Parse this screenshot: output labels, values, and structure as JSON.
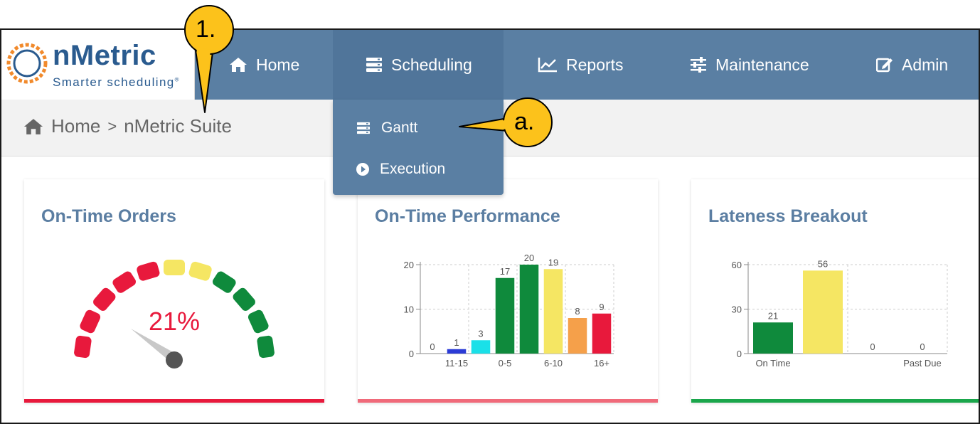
{
  "brand": {
    "name": "nMetric",
    "tagline": "Smarter scheduling",
    "trademark": "®",
    "color": "#2a5b8f",
    "ring_color": "#f18a2c"
  },
  "nav": {
    "items": [
      {
        "label": "Home",
        "icon": "home-icon"
      },
      {
        "label": "Scheduling",
        "icon": "server-stack-icon",
        "active": true
      },
      {
        "label": "Reports",
        "icon": "line-chart-icon"
      },
      {
        "label": "Maintenance",
        "icon": "sliders-icon"
      },
      {
        "label": "Admin",
        "icon": "edit-icon"
      }
    ],
    "bg_color": "#5a7fa3"
  },
  "breadcrumb": {
    "home": "Home",
    "separator": ">",
    "current": "nMetric Suite"
  },
  "dropdown": {
    "items": [
      {
        "label": "Gantt",
        "icon": "server-stack-icon"
      },
      {
        "label": "Execution",
        "icon": "play-circle-icon"
      }
    ]
  },
  "cards": {
    "ontime_orders": {
      "title": "On-Time Orders",
      "value_label": "21%",
      "value": 21,
      "accent": "#e8193c"
    },
    "ontime_performance": {
      "title": "On-Time Performance",
      "accent": "#f06a7a"
    },
    "lateness_breakout": {
      "title": "Lateness Breakout",
      "accent": "#1aa64b"
    }
  },
  "chart_data": [
    {
      "type": "bar",
      "title": "On-Time Performance",
      "categories": [
        "",
        "11-15",
        "",
        "0-5",
        "",
        "6-10",
        "",
        "16+"
      ],
      "values": [
        0,
        1,
        3,
        17,
        20,
        19,
        8,
        9
      ],
      "colors": [
        "#cccccc",
        "#2b3bd6",
        "#1ae0e8",
        "#0f8a3c",
        "#0f8a3c",
        "#f5e663",
        "#f5a04a",
        "#e8193c"
      ],
      "ylim": [
        0,
        20
      ],
      "yticks": [
        0,
        10,
        20
      ],
      "grid": true
    },
    {
      "type": "bar",
      "title": "Lateness Breakout",
      "categories": [
        "On Time",
        "",
        "",
        "Past Due"
      ],
      "values": [
        21,
        56,
        0,
        0
      ],
      "colors": [
        "#0f8a3c",
        "#f5e663",
        "#f5a04a",
        "#e8193c"
      ],
      "ylim": [
        0,
        60
      ],
      "yticks": [
        0,
        30,
        60
      ],
      "grid": true
    }
  ],
  "callouts": {
    "main": "1.",
    "sub": "a.",
    "fill": "#fcc21b"
  }
}
